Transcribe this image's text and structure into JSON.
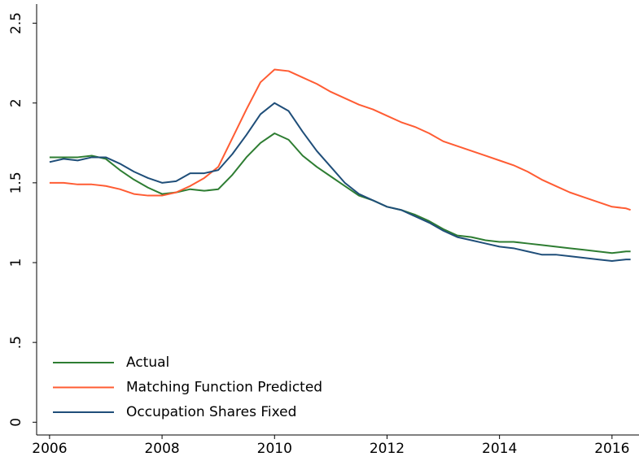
{
  "chart_data": {
    "type": "line",
    "x": [
      2006,
      2006.25,
      2006.5,
      2006.75,
      2007,
      2007.25,
      2007.5,
      2007.75,
      2008,
      2008.25,
      2008.5,
      2008.75,
      2009,
      2009.25,
      2009.5,
      2009.75,
      2010,
      2010.25,
      2010.5,
      2010.75,
      2011,
      2011.25,
      2011.5,
      2011.75,
      2012,
      2012.25,
      2012.5,
      2012.75,
      2013,
      2013.25,
      2013.5,
      2013.75,
      2014,
      2014.25,
      2014.5,
      2014.75,
      2015,
      2015.25,
      2015.5,
      2015.75,
      2016,
      2016.25,
      2016.33
    ],
    "series": [
      {
        "name": "Actual",
        "color": "#2e7d32",
        "values": [
          1.66,
          1.66,
          1.66,
          1.67,
          1.65,
          1.58,
          1.52,
          1.47,
          1.43,
          1.44,
          1.46,
          1.45,
          1.46,
          1.55,
          1.66,
          1.75,
          1.81,
          1.77,
          1.67,
          1.6,
          1.54,
          1.48,
          1.42,
          1.39,
          1.35,
          1.33,
          1.3,
          1.26,
          1.21,
          1.17,
          1.16,
          1.14,
          1.13,
          1.13,
          1.12,
          1.11,
          1.1,
          1.09,
          1.08,
          1.07,
          1.06,
          1.07,
          1.07
        ]
      },
      {
        "name": "Matching Function Predicted",
        "color": "#ff5c33",
        "values": [
          1.5,
          1.5,
          1.49,
          1.49,
          1.48,
          1.46,
          1.43,
          1.42,
          1.42,
          1.44,
          1.48,
          1.53,
          1.6,
          1.78,
          1.96,
          2.13,
          2.21,
          2.2,
          2.16,
          2.12,
          2.07,
          2.03,
          1.99,
          1.96,
          1.92,
          1.88,
          1.85,
          1.81,
          1.76,
          1.73,
          1.7,
          1.67,
          1.64,
          1.61,
          1.57,
          1.52,
          1.48,
          1.44,
          1.41,
          1.38,
          1.35,
          1.34,
          1.33
        ]
      },
      {
        "name": "Occupation Shares Fixed",
        "color": "#1f4e79",
        "values": [
          1.63,
          1.65,
          1.64,
          1.66,
          1.66,
          1.62,
          1.57,
          1.53,
          1.5,
          1.51,
          1.56,
          1.56,
          1.58,
          1.68,
          1.8,
          1.93,
          2.0,
          1.95,
          1.82,
          1.7,
          1.6,
          1.5,
          1.43,
          1.39,
          1.35,
          1.33,
          1.29,
          1.25,
          1.2,
          1.16,
          1.14,
          1.12,
          1.1,
          1.09,
          1.07,
          1.05,
          1.05,
          1.04,
          1.03,
          1.02,
          1.01,
          1.02,
          1.02
        ]
      }
    ],
    "xlim": [
      2005.77,
      2016.48
    ],
    "xticks": [
      2006,
      2008,
      2010,
      2012,
      2014,
      2016
    ],
    "ylim": [
      -0.08,
      2.62
    ],
    "yticks": [
      0,
      {
        "value": 0.5,
        "label": ".5"
      },
      1,
      1.5,
      2,
      2.5
    ],
    "grid": false,
    "legend": "lower left"
  }
}
